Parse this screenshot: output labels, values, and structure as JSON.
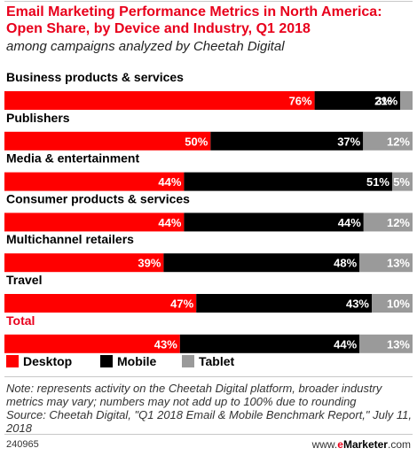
{
  "title": "Email Marketing Performance Metrics in North America: Open Share, by Device and Industry, Q1 2018",
  "subtitle": "among campaigns analyzed by Cheetah Digital",
  "colors": {
    "desktop": "#ff0000",
    "mobile": "#000000",
    "tablet": "#9a9a9a",
    "accent": "#e8001c"
  },
  "chart_data": {
    "type": "bar",
    "orientation": "horizontal",
    "stacked": true,
    "categories": [
      "Business products & services",
      "Publishers",
      "Media & entertainment",
      "Consumer products & services",
      "Multichannel retailers",
      "Travel",
      "Total"
    ],
    "series": [
      {
        "name": "Desktop",
        "values": [
          76,
          50,
          44,
          44,
          39,
          47,
          43
        ]
      },
      {
        "name": "Mobile",
        "values": [
          21,
          37,
          51,
          44,
          48,
          43,
          44
        ]
      },
      {
        "name": "Tablet",
        "values": [
          3,
          12,
          5,
          12,
          13,
          10,
          13
        ]
      }
    ],
    "value_suffix": "%",
    "highlighted_category": "Total",
    "legend_position": "bottom-left"
  },
  "note": "Note: represents activity on the Cheetah Digital platform, broader industry metrics may vary; numbers may not add up to 100% due to rounding",
  "source": "Source: Cheetah Digital, \"Q1 2018 Email & Mobile Benchmark Report,\" July 11, 2018",
  "footer": {
    "id": "240965",
    "brand_prefix": "www.",
    "brand_e": "e",
    "brand_name": "Marketer",
    "brand_suffix": ".com"
  }
}
